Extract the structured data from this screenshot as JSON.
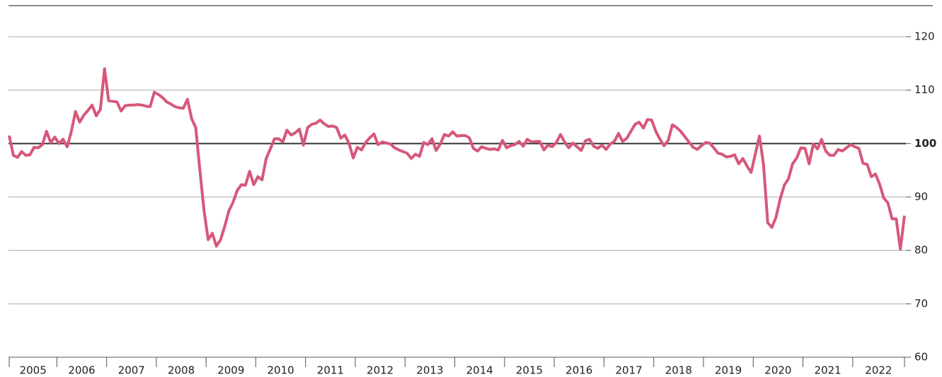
{
  "chart_data": {
    "type": "line",
    "categories": [
      "2005",
      null,
      null,
      null,
      null,
      null,
      null,
      null,
      null,
      null,
      null,
      null,
      "2006",
      null,
      null,
      null,
      null,
      null,
      null,
      null,
      null,
      null,
      null,
      null,
      "2007",
      null,
      null,
      null,
      null,
      null,
      null,
      null,
      null,
      null,
      null,
      null,
      "2008",
      null,
      null,
      null,
      null,
      null,
      null,
      null,
      null,
      null,
      null,
      null,
      "2009",
      null,
      null,
      null,
      null,
      null,
      null,
      null,
      null,
      null,
      null,
      null,
      "2010",
      null,
      null,
      null,
      null,
      null,
      null,
      null,
      null,
      null,
      null,
      null,
      "2011",
      null,
      null,
      null,
      null,
      null,
      null,
      null,
      null,
      null,
      null,
      null,
      "2012",
      null,
      null,
      null,
      null,
      null,
      null,
      null,
      null,
      null,
      null,
      null,
      "2013",
      null,
      null,
      null,
      null,
      null,
      null,
      null,
      null,
      null,
      null,
      null,
      "2014",
      null,
      null,
      null,
      null,
      null,
      null,
      null,
      null,
      null,
      null,
      null,
      "2015",
      null,
      null,
      null,
      null,
      null,
      null,
      null,
      null,
      null,
      null,
      null,
      "2016",
      null,
      null,
      null,
      null,
      null,
      null,
      null,
      null,
      null,
      null,
      null,
      "2017",
      null,
      null,
      null,
      null,
      null,
      null,
      null,
      null,
      null,
      null,
      null,
      "2018",
      null,
      null,
      null,
      null,
      null,
      null,
      null,
      null,
      null,
      null,
      null,
      "2019",
      null,
      null,
      null,
      null,
      null,
      null,
      null,
      null,
      null,
      null,
      null,
      "2020",
      null,
      null,
      null,
      null,
      null,
      null,
      null,
      null,
      null,
      null,
      null,
      "2021",
      null,
      null,
      null,
      null,
      null,
      null,
      null,
      null,
      null,
      null,
      null,
      "2022",
      null,
      null,
      null,
      null,
      null,
      null,
      null,
      null,
      null,
      null,
      null,
      null
    ],
    "series": [
      {
        "color": "#d6587a",
        "values": [
          101.5,
          97.8,
          97.4,
          98.5,
          97.8,
          97.9,
          99.3,
          99.2,
          99.8,
          102.3,
          100.2,
          101.2,
          100,
          100.8,
          99.4,
          102.3,
          106,
          104,
          105.3,
          106.2,
          107.2,
          105.2,
          106.4,
          114,
          108,
          107.9,
          107.8,
          106.1,
          107.1,
          107.2,
          107.2,
          107.3,
          107.2,
          107,
          106.9,
          109.6,
          109.2,
          108.6,
          107.8,
          107.4,
          106.9,
          106.7,
          106.6,
          108.3,
          104.7,
          103,
          95,
          87.5,
          82,
          83.2,
          80.8,
          82,
          84.5,
          87.4,
          89,
          91.2,
          92.3,
          92.2,
          94.8,
          92.3,
          93.8,
          93.2,
          97.2,
          99,
          100.9,
          100.9,
          100.3,
          102.5,
          101.6,
          102,
          102.7,
          99.7,
          103,
          103.6,
          103.8,
          104.4,
          103.7,
          103.2,
          103.3,
          103,
          101,
          101.6,
          100,
          97.3,
          99.3,
          98.8,
          100.2,
          101.1,
          101.8,
          99.8,
          100.3,
          100.1,
          99.9,
          99.2,
          98.8,
          98.5,
          98.2,
          97.2,
          98,
          97.6,
          100.2,
          99.8,
          100.9,
          98.7,
          99.9,
          101.7,
          101.4,
          102.2,
          101.4,
          101.5,
          101.5,
          101.1,
          99.1,
          98.6,
          99.4,
          99.1,
          98.9,
          99,
          98.8,
          100.6,
          99.2,
          99.6,
          99.8,
          100.4,
          99.5,
          100.8,
          100.3,
          100.4,
          100.4,
          98.8,
          99.7,
          99.4,
          100.2,
          101.7,
          100.3,
          99.2,
          100.1,
          99.4,
          98.7,
          100.5,
          100.8,
          99.5,
          99.1,
          99.7,
          98.9,
          99.9,
          100.4,
          101.9,
          100.4,
          101,
          102.3,
          103.6,
          104,
          102.9,
          104.5,
          104.4,
          102.3,
          100.8,
          99.6,
          100.6,
          103.5,
          103,
          102.3,
          101.3,
          100.3,
          99.3,
          98.9,
          99.6,
          100.2,
          100.1,
          99.2,
          98.2,
          98,
          97.5,
          97.6,
          97.9,
          96.2,
          97.2,
          95.8,
          94.6,
          98,
          101.4,
          96,
          85.2,
          84.3,
          86.2,
          89.6,
          92.2,
          93.4,
          96.2,
          97.3,
          99.2,
          99.1,
          96.2,
          99.9,
          99,
          100.8,
          98.6,
          97.8,
          97.8,
          98.9,
          98.6,
          99.2,
          99.8,
          99.4,
          99.1,
          96.3,
          96.1,
          93.8,
          94.3,
          92.4,
          89.8,
          88.9,
          85.9,
          85.9,
          80.2,
          86.5
        ]
      }
    ],
    "ylim": [
      60,
      120
    ],
    "yticks": [
      60,
      70,
      80,
      90,
      100,
      110,
      120
    ],
    "reference_line": 100,
    "grid": true
  }
}
